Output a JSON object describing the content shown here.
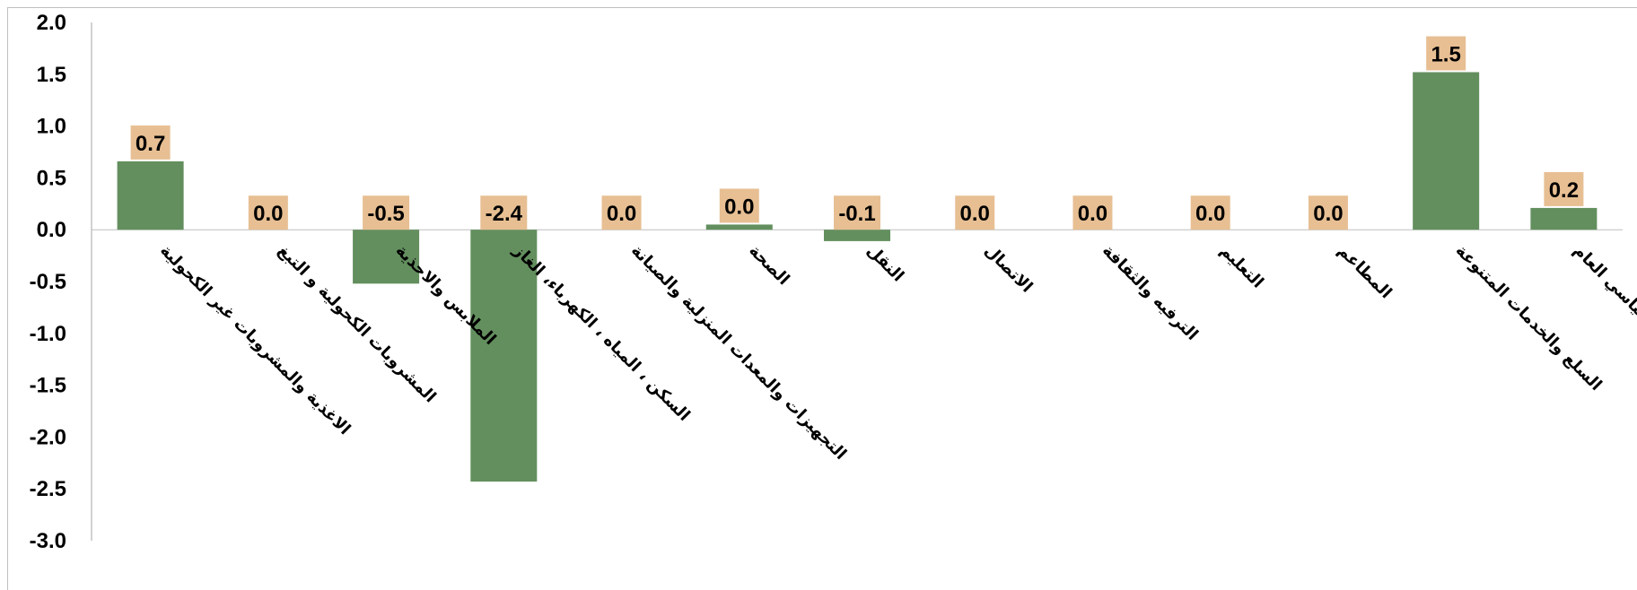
{
  "chart_data": {
    "type": "bar",
    "title": "",
    "xlabel": "",
    "ylabel": "",
    "ylim": [
      -3.0,
      2.0
    ],
    "y_ticks": [
      "2.0",
      "1.5",
      "1.0",
      "0.5",
      "0.0",
      "-0.5",
      "-1.0",
      "-1.5",
      "-2.0",
      "-2.5",
      "-3.0"
    ],
    "y_tick_values": [
      2.0,
      1.5,
      1.0,
      0.5,
      0.0,
      -0.5,
      -1.0,
      -1.5,
      -2.0,
      -2.5,
      -3.0
    ],
    "grid": false,
    "legend": "none",
    "categories": [
      "الاغذية والمشروبات غير الكحولية",
      "المشروبات الكحولية و التبغ",
      "الملابس والاحذية",
      "السكن ، المياه ، الكهرباء، الغاز",
      "التجهيزات والمعدات المنزلية والصيانة",
      "الصحة",
      "النقل",
      "الاتصال",
      "الترفيه والثقافة",
      "التعليم",
      "المطاعم",
      "السلع والخدمات المتنوعة",
      "الرقم القياسي العام"
    ],
    "values": [
      0.66,
      0.0,
      -0.52,
      -2.43,
      0.0,
      0.05,
      -0.11,
      0.0,
      0.0,
      0.0,
      0.0,
      1.52,
      0.21
    ],
    "data_labels": [
      "0.7",
      "0.0",
      "-0.5",
      "-2.4",
      "0.0",
      "0.0",
      "-0.1",
      "0.0",
      "0.0",
      "0.0",
      "0.0",
      "1.5",
      "0.2"
    ],
    "colors": {
      "bar": "#638f5e",
      "label_background": "#e7bf93"
    }
  }
}
